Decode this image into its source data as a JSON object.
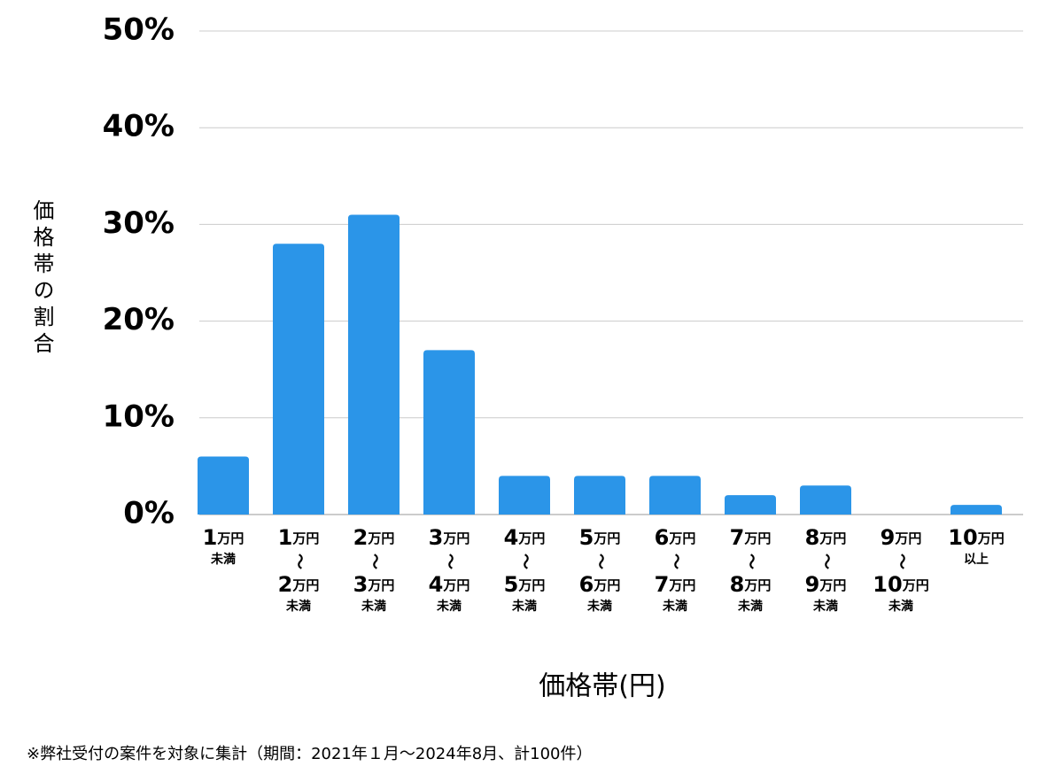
{
  "chart_data": {
    "type": "bar",
    "y_label": "価格帯の割合",
    "x_label": "価格帯(円)",
    "footnote": "※弊社受付の案件を対象に集計（期間：2021年１月〜2024年8月、計100件）",
    "categories": [
      [
        "1万円",
        "未満"
      ],
      [
        "1万円",
        "〜",
        "2万円",
        "未満"
      ],
      [
        "2万円",
        "〜",
        "3万円",
        "未満"
      ],
      [
        "3万円",
        "〜",
        "4万円",
        "未満"
      ],
      [
        "4万円",
        "〜",
        "5万円",
        "未満"
      ],
      [
        "5万円",
        "〜",
        "6万円",
        "未満"
      ],
      [
        "6万円",
        "〜",
        "7万円",
        "未満"
      ],
      [
        "7万円",
        "〜",
        "8万円",
        "未満"
      ],
      [
        "8万円",
        "〜",
        "9万円",
        "未満"
      ],
      [
        "9万円",
        "〜",
        "10万円",
        "未満"
      ],
      [
        "10万円",
        "以上"
      ]
    ],
    "values": [
      6,
      28,
      31,
      17,
      4,
      4,
      4,
      2,
      3,
      0,
      1
    ],
    "color": "#2b95e8",
    "ylim": [
      0,
      50
    ],
    "yticks": [
      {
        "value": 0,
        "label": "0%"
      },
      {
        "value": 10,
        "label": "10%"
      },
      {
        "value": 20,
        "label": "20%"
      },
      {
        "value": 30,
        "label": "30%"
      },
      {
        "value": 40,
        "label": "40%"
      },
      {
        "value": 50,
        "label": "50%"
      }
    ],
    "grid": true
  }
}
